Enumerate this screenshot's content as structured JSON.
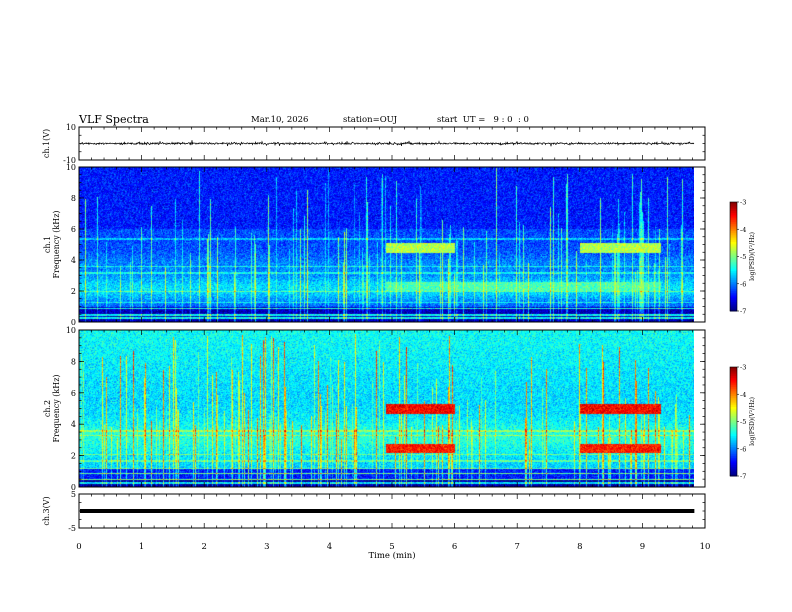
{
  "header": {
    "title": "VLF Spectra",
    "date": "Mar.10, 2026",
    "station": "station=OUJ",
    "start": "start  UT =   9 : 0  : 0"
  },
  "chart_data": [
    {
      "type": "line",
      "name": "ch1-waveform",
      "ylabel": "ch.1(V)",
      "ylim": [
        -10,
        10
      ],
      "yticks": [
        10,
        -10
      ],
      "x_range_min": [
        0,
        9.83
      ],
      "baseline": 0,
      "description": "dense noisy waveform, amplitude about ±1 V"
    },
    {
      "type": "heatmap",
      "name": "ch1-spectrogram",
      "ylabel_top": "ch.1",
      "ylabel": "Frequency (kHz)",
      "ylim": [
        0,
        10
      ],
      "yticks": [
        0,
        2,
        4,
        6,
        8,
        10
      ],
      "x_range_min": [
        0,
        9.83
      ],
      "colorbar": {
        "label": "log(PSD)(V²/Hz)",
        "range": [
          -7,
          -3
        ],
        "ticks": [
          "-3",
          "-4",
          "-5",
          "-6",
          "-7"
        ]
      },
      "features": [
        {
          "label": "bright band",
          "x_min": [
            4.9,
            6.0
          ],
          "f_khz": 4.8,
          "level": -4.8
        },
        {
          "label": "bright band",
          "x_min": [
            8.0,
            9.3
          ],
          "f_khz": 4.8,
          "level": -4.8
        },
        {
          "label": "bright band",
          "x_min": [
            4.9,
            9.3
          ],
          "f_khz": 2.3,
          "level": -5.2
        }
      ]
    },
    {
      "type": "heatmap",
      "name": "ch2-spectrogram",
      "ylabel_top": "ch.2",
      "ylabel": "Frequency (kHz)",
      "ylim": [
        0,
        10
      ],
      "yticks": [
        0,
        2,
        4,
        6,
        8,
        10
      ],
      "x_range_min": [
        0,
        9.83
      ],
      "colorbar": {
        "label": "log(PSD)(V²/Hz)",
        "range": [
          -7,
          -3
        ],
        "ticks": [
          "-3",
          "-4",
          "-5",
          "-6",
          "-7"
        ]
      },
      "features": [
        {
          "label": "bright band",
          "x_min": [
            4.9,
            6.0
          ],
          "f_khz": 5.0,
          "level": -3.5
        },
        {
          "label": "bright band",
          "x_min": [
            8.0,
            9.3
          ],
          "f_khz": 5.0,
          "level": -3.5
        },
        {
          "label": "bright band",
          "x_min": [
            4.9,
            6.0
          ],
          "f_khz": 2.5,
          "level": -3.6
        },
        {
          "label": "bright band",
          "x_min": [
            8.0,
            9.3
          ],
          "f_khz": 2.5,
          "level": -3.6
        }
      ]
    },
    {
      "type": "line",
      "name": "ch3-waveform",
      "ylabel": "ch.3(V)",
      "ylim": [
        -5,
        5
      ],
      "yticks": [
        5,
        -5
      ],
      "x_range_min": [
        0,
        9.83
      ],
      "baseline": 0,
      "description": "thick flat line near 0 V"
    }
  ],
  "xaxis": {
    "label": "Time (min)",
    "ticks": [
      "0",
      "1",
      "2",
      "3",
      "4",
      "5",
      "6",
      "7",
      "8",
      "9",
      "10"
    ],
    "range": [
      0,
      10
    ]
  },
  "colors": {
    "axis": "#000000",
    "background": "#ffffff"
  }
}
